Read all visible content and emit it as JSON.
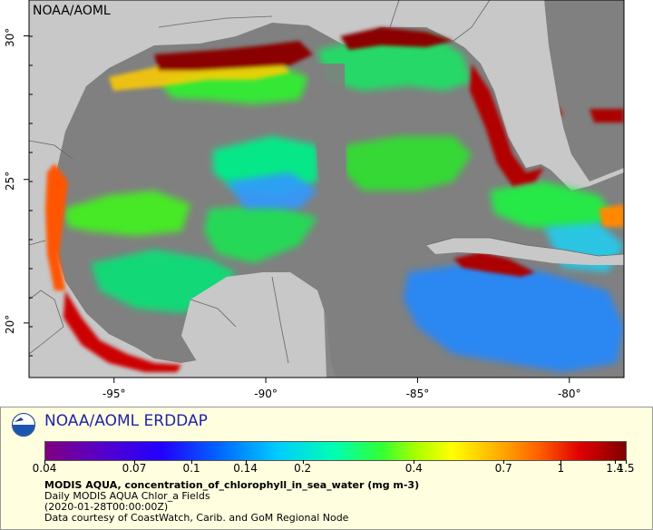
{
  "map": {
    "credit": "NOAA/AOML",
    "x_ticks": [
      {
        "label": "-95°",
        "lon": -95
      },
      {
        "label": "-90°",
        "lon": -90
      },
      {
        "label": "-85°",
        "lon": -85
      },
      {
        "label": "-80°",
        "lon": -80
      }
    ],
    "y_ticks": [
      {
        "label": "30°",
        "lat": 30
      },
      {
        "label": "25°",
        "lat": 25
      },
      {
        "label": "20°",
        "lat": 20
      }
    ],
    "colors": {
      "land": "#c8c8c8",
      "no_data": "#808080",
      "border": "#666666"
    }
  },
  "legend": {
    "title": "NOAA/AOML ERDDAP",
    "colorbar_labels": [
      "0.04",
      "0.07",
      "0.1",
      "0.14",
      "0.2",
      "0.4",
      "0.7",
      "1",
      "1.4",
      "1.5"
    ],
    "variable": "MODIS AQUA, concentration_of_chlorophyll_in_sea_water (mg m-3)",
    "dataset": "Daily MODIS AQUA Chlor_a Fields",
    "time": "(2020-01-28T00:00:00Z)",
    "courtesy": "Data courtesy of CoastWatch, Carib. and GoM Regional Node"
  }
}
